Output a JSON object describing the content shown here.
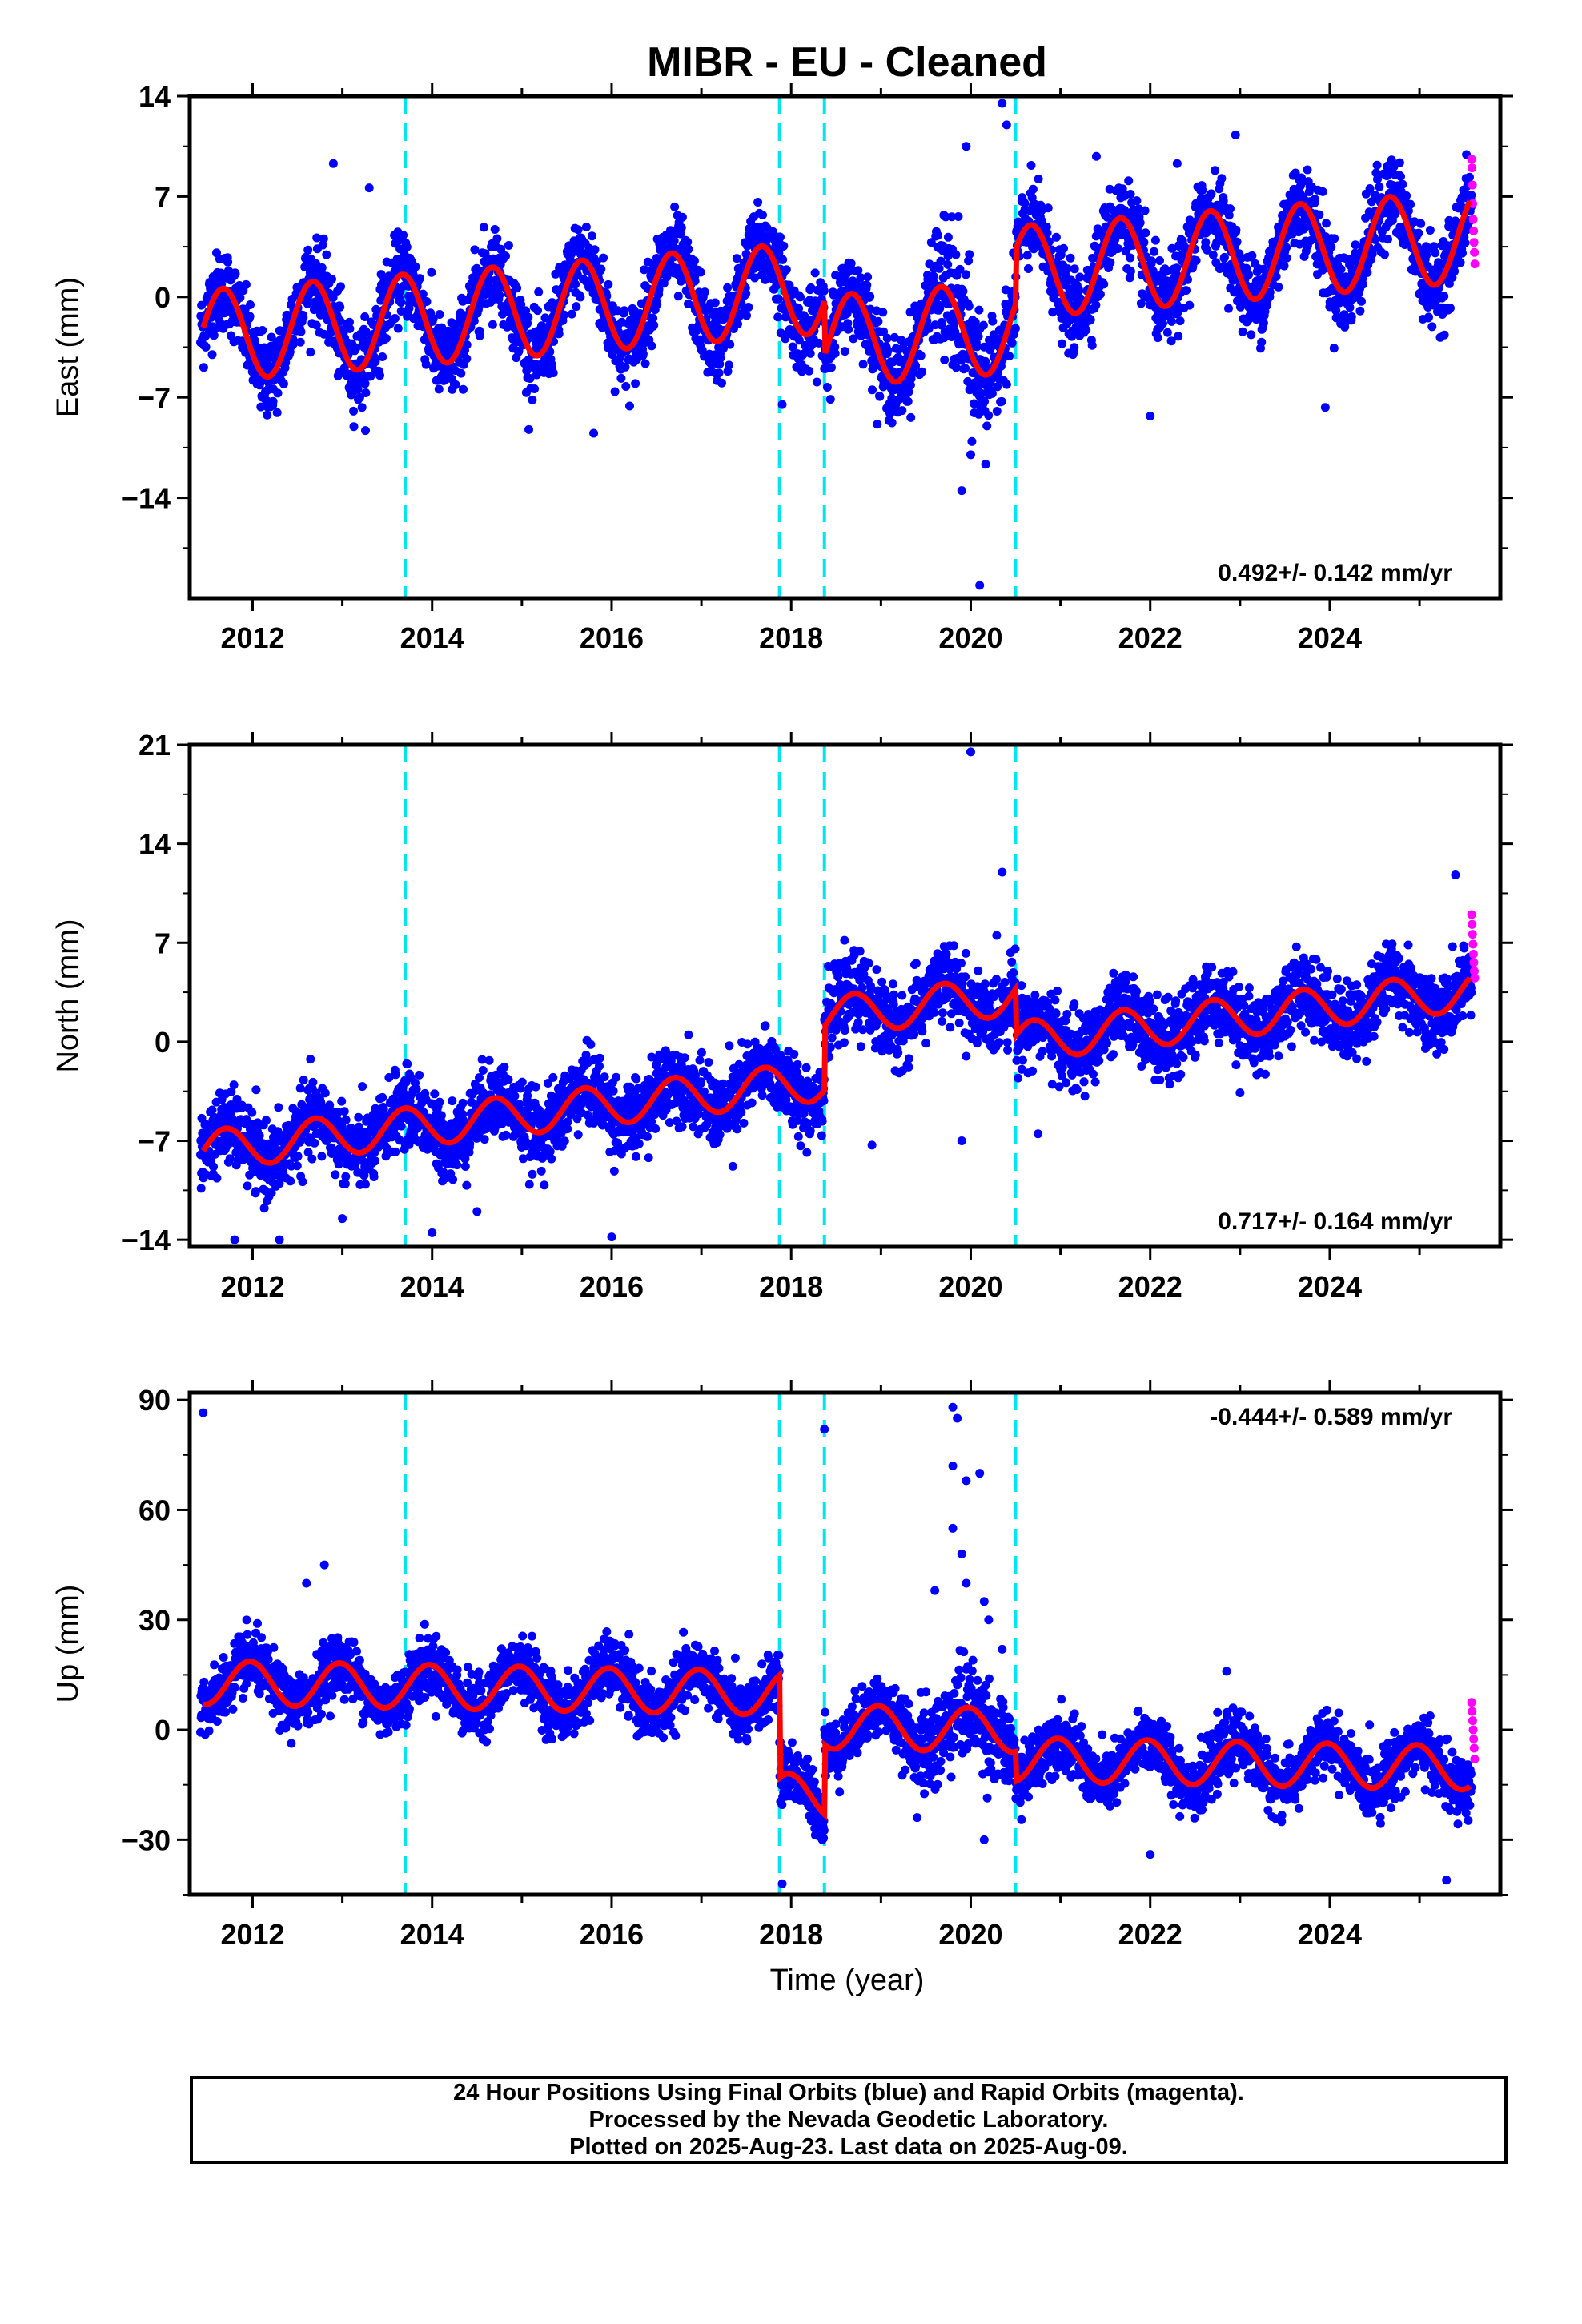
{
  "title": "MIBR  - EU - Cleaned",
  "xlabel": "Time (year)",
  "colors": {
    "final_orbits": "#0000ff",
    "rapid_orbits": "#ff00ff",
    "model_fit": "#ff0000",
    "breaks": "#00e5ee"
  },
  "chart_data": [
    {
      "type": "scatter",
      "component": "East",
      "ylabel": "East (mm)",
      "ylim": [
        -21,
        14
      ],
      "yticks": [
        -14,
        -7,
        0,
        7,
        14
      ],
      "xlim": [
        2011.3,
        2025.9
      ],
      "xticks": [
        2012,
        2014,
        2016,
        2018,
        2020,
        2022,
        2024
      ],
      "rate_label": "0.492+/- 0.142 mm/yr",
      "rate_label_position": "bottom-right",
      "breaks": [
        2013.7,
        2017.87,
        2018.37,
        2020.5
      ],
      "segment_offsets": [
        0,
        0,
        0,
        -3.8,
        0
      ],
      "trend": {
        "rate": 0.492,
        "intercept_at_2018": 0.5
      },
      "annual_amplitude": 3.2,
      "annual_phase_year": 0.42,
      "scatter_sigma": 1.4,
      "rapid_range": [
        2025.58,
        2025.62
      ],
      "rapid_values": [
        9.6,
        9.0,
        7.8,
        6.5,
        5.4,
        4.6,
        3.8,
        3.1,
        2.3
      ],
      "outliers": [
        {
          "x": 2012.9,
          "y": 9.3
        },
        {
          "x": 2013.3,
          "y": 7.6
        },
        {
          "x": 2015.8,
          "y": -9.5
        },
        {
          "x": 2017.9,
          "y": -7.5
        },
        {
          "x": 2019.9,
          "y": -13.5
        },
        {
          "x": 2020.0,
          "y": -11.0
        },
        {
          "x": 2019.95,
          "y": 10.5
        },
        {
          "x": 2020.35,
          "y": 13.5
        },
        {
          "x": 2020.4,
          "y": 12.0
        },
        {
          "x": 2020.1,
          "y": -20.1
        },
        {
          "x": 2021.4,
          "y": 9.8
        },
        {
          "x": 2022.0,
          "y": -8.3
        },
        {
          "x": 2022.3,
          "y": 9.3
        },
        {
          "x": 2022.95,
          "y": 11.3
        },
        {
          "x": 2023.95,
          "y": -7.7
        }
      ]
    },
    {
      "type": "scatter",
      "component": "North",
      "ylabel": "North (mm)",
      "ylim": [
        -14.5,
        21
      ],
      "yticks": [
        -14,
        -7,
        0,
        7,
        14,
        21
      ],
      "xlim": [
        2011.3,
        2025.9
      ],
      "xticks": [
        2012,
        2014,
        2016,
        2018,
        2020,
        2022,
        2024
      ],
      "rate_label": "0.717+/- 0.164 mm/yr",
      "rate_label_position": "bottom-right",
      "breaks": [
        2013.7,
        2017.87,
        2018.37,
        2020.5
      ],
      "segment_offsets": [
        0,
        0,
        0,
        4.5,
        1.2
      ],
      "trend": {
        "rate": 0.717,
        "intercept_at_2018": -3.0
      },
      "annual_amplitude": 1.4,
      "annual_phase_year": 0.45,
      "scatter_sigma": 1.3,
      "rapid_range": [
        2025.58,
        2025.62
      ],
      "rapid_values": [
        9.0,
        8.3,
        7.6,
        6.9,
        6.2,
        5.6,
        5.0,
        4.5
      ],
      "outliers": [
        {
          "x": 2011.8,
          "y": -14.0
        },
        {
          "x": 2012.3,
          "y": -14.0
        },
        {
          "x": 2013.0,
          "y": -12.5
        },
        {
          "x": 2014.0,
          "y": -13.5
        },
        {
          "x": 2014.5,
          "y": -12.0
        },
        {
          "x": 2016.0,
          "y": -13.8
        },
        {
          "x": 2017.35,
          "y": -8.8
        },
        {
          "x": 2018.9,
          "y": -7.3
        },
        {
          "x": 2019.9,
          "y": -7.0
        },
        {
          "x": 2020.0,
          "y": 20.5
        },
        {
          "x": 2020.35,
          "y": 12.0
        },
        {
          "x": 2020.75,
          "y": -6.5
        },
        {
          "x": 2023.0,
          "y": -3.6
        },
        {
          "x": 2024.3,
          "y": -1.2
        },
        {
          "x": 2025.4,
          "y": 11.8
        }
      ]
    },
    {
      "type": "scatter",
      "component": "Up",
      "ylabel": "Up (mm)",
      "ylim": [
        -45,
        92
      ],
      "yticks": [
        -30,
        0,
        30,
        60,
        90
      ],
      "xlim": [
        2011.3,
        2025.9
      ],
      "xticks": [
        2012,
        2014,
        2016,
        2018,
        2020,
        2022,
        2024
      ],
      "rate_label": "-0.444+/- 0.589 mm/yr",
      "rate_label_position": "top-right",
      "breaks": [
        2013.7,
        2017.87,
        2018.37,
        2020.5
      ],
      "segment_offsets": [
        0,
        0,
        -28,
        -9,
        -17
      ],
      "trend": {
        "rate": -0.444,
        "intercept_at_2018": 10.0
      },
      "annual_amplitude": 6.0,
      "annual_phase_year": 0.72,
      "scatter_sigma": 4.0,
      "rapid_range": [
        2025.58,
        2025.62
      ],
      "rapid_values": [
        7.5,
        5.0,
        2.5,
        0.0,
        -2.5,
        -5.0,
        -8.0
      ],
      "outliers": [
        {
          "x": 2011.45,
          "y": 86.5
        },
        {
          "x": 2012.8,
          "y": 45.0
        },
        {
          "x": 2012.6,
          "y": 40.0
        },
        {
          "x": 2017.9,
          "y": -42.0
        },
        {
          "x": 2018.37,
          "y": 82.0
        },
        {
          "x": 2019.8,
          "y": 88.0
        },
        {
          "x": 2019.85,
          "y": 85.0
        },
        {
          "x": 2019.8,
          "y": 72.0
        },
        {
          "x": 2019.95,
          "y": 68.0
        },
        {
          "x": 2020.1,
          "y": 70.0
        },
        {
          "x": 2019.8,
          "y": 55.0
        },
        {
          "x": 2019.9,
          "y": 48.0
        },
        {
          "x": 2019.95,
          "y": 40.0
        },
        {
          "x": 2019.6,
          "y": 38.0
        },
        {
          "x": 2020.15,
          "y": 35.0
        },
        {
          "x": 2020.2,
          "y": 30.0
        },
        {
          "x": 2020.35,
          "y": 22.0
        },
        {
          "x": 2020.15,
          "y": -30.0
        },
        {
          "x": 2022.0,
          "y": -34.0
        },
        {
          "x": 2022.85,
          "y": 16.0
        },
        {
          "x": 2025.3,
          "y": -41.0
        }
      ]
    }
  ],
  "footer": {
    "line1": "24 Hour Positions Using Final Orbits (blue) and Rapid Orbits (magenta).",
    "line2": "Processed by the Nevada Geodetic Laboratory.",
    "line3": "Plotted on 2025-Aug-23. Last data on 2025-Aug-09."
  }
}
